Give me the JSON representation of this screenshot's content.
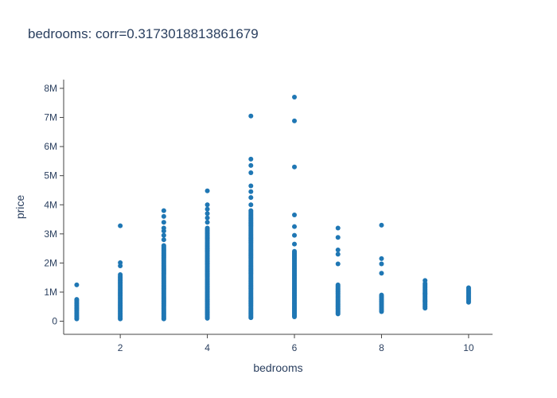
{
  "chart_data": {
    "type": "scatter",
    "title": "bedrooms: corr=0.3173018813861679",
    "xlabel": "bedrooms",
    "ylabel": "price",
    "xlim": [
      0.7,
      10.55
    ],
    "ylim": [
      -450000,
      8300000
    ],
    "x_ticks": [
      2,
      4,
      6,
      8,
      10
    ],
    "x_tick_labels": [
      "2",
      "4",
      "6",
      "8",
      "10"
    ],
    "y_ticks": [
      0,
      1000000,
      2000000,
      3000000,
      4000000,
      5000000,
      6000000,
      7000000,
      8000000
    ],
    "y_tick_labels": [
      "0",
      "1M",
      "2M",
      "3M",
      "4M",
      "5M",
      "6M",
      "7M",
      "8M"
    ],
    "grid": false,
    "marker_color": "#1f77b4",
    "series": [
      {
        "bedrooms": [
          1,
          2,
          3,
          4,
          5,
          6,
          7,
          8,
          9,
          10
        ],
        "price_min": [
          80000,
          80000,
          80000,
          100000,
          120000,
          150000,
          250000,
          330000,
          450000,
          650000
        ],
        "price_max": [
          750000,
          1550000,
          2600000,
          3200000,
          3800000,
          2400000,
          1250000,
          900000,
          1300000,
          1150000
        ]
      }
    ],
    "points": [
      {
        "x": 1,
        "y": 1250000
      },
      {
        "x": 2,
        "y": 3280000
      },
      {
        "x": 2,
        "y": 2010000
      },
      {
        "x": 2,
        "y": 1900000
      },
      {
        "x": 2,
        "y": 1600000
      },
      {
        "x": 3,
        "y": 3800000
      },
      {
        "x": 3,
        "y": 3600000
      },
      {
        "x": 3,
        "y": 3400000
      },
      {
        "x": 3,
        "y": 3200000
      },
      {
        "x": 3,
        "y": 3100000
      },
      {
        "x": 3,
        "y": 2950000
      },
      {
        "x": 3,
        "y": 2800000
      },
      {
        "x": 4,
        "y": 4480000
      },
      {
        "x": 4,
        "y": 4000000
      },
      {
        "x": 4,
        "y": 3850000
      },
      {
        "x": 4,
        "y": 3700000
      },
      {
        "x": 4,
        "y": 3550000
      },
      {
        "x": 4,
        "y": 3400000
      },
      {
        "x": 5,
        "y": 7050000
      },
      {
        "x": 5,
        "y": 5570000
      },
      {
        "x": 5,
        "y": 5350000
      },
      {
        "x": 5,
        "y": 5100000
      },
      {
        "x": 5,
        "y": 4650000
      },
      {
        "x": 5,
        "y": 4450000
      },
      {
        "x": 5,
        "y": 4250000
      },
      {
        "x": 5,
        "y": 4000000
      },
      {
        "x": 6,
        "y": 7700000
      },
      {
        "x": 6,
        "y": 6880000
      },
      {
        "x": 6,
        "y": 5300000
      },
      {
        "x": 6,
        "y": 3650000
      },
      {
        "x": 6,
        "y": 3250000
      },
      {
        "x": 6,
        "y": 2950000
      },
      {
        "x": 6,
        "y": 2650000
      },
      {
        "x": 7,
        "y": 3200000
      },
      {
        "x": 7,
        "y": 2880000
      },
      {
        "x": 7,
        "y": 2450000
      },
      {
        "x": 7,
        "y": 2300000
      },
      {
        "x": 7,
        "y": 1970000
      },
      {
        "x": 8,
        "y": 3300000
      },
      {
        "x": 8,
        "y": 2150000
      },
      {
        "x": 8,
        "y": 1970000
      },
      {
        "x": 8,
        "y": 1650000
      },
      {
        "x": 9,
        "y": 1400000
      },
      {
        "x": 9,
        "y": 950000
      },
      {
        "x": 9,
        "y": 700000
      }
    ]
  }
}
